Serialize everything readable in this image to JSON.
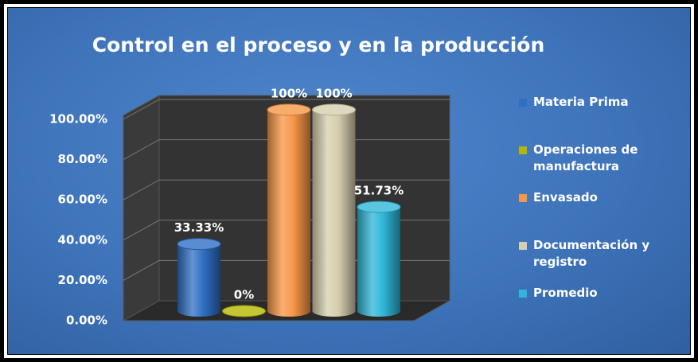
{
  "chart_data": {
    "type": "bar",
    "title": "Control en el proceso y en la producción",
    "categories": [
      null
    ],
    "series": [
      {
        "name": "Materia Prima",
        "color": "#2f6fc4",
        "values": [
          33.33
        ],
        "value_labels": [
          "33.33%"
        ]
      },
      {
        "name": "Operaciones de manufactura",
        "color": "#b5b800",
        "values": [
          0
        ],
        "value_labels": [
          "0%"
        ]
      },
      {
        "name": "Envasado",
        "color": "#f79646",
        "values": [
          100
        ],
        "value_labels": [
          "100%"
        ]
      },
      {
        "name": "Documentación y registro",
        "color": "#d6cfae",
        "values": [
          100
        ],
        "value_labels": [
          "100%"
        ]
      },
      {
        "name": "Promedio",
        "color": "#2fb6d8",
        "values": [
          51.73
        ],
        "value_labels": [
          "51.73%"
        ]
      }
    ],
    "ylim": [
      0,
      100
    ],
    "yticks": [
      {
        "value": 0,
        "label": "0.00%"
      },
      {
        "value": 20,
        "label": "20.00%"
      },
      {
        "value": 40,
        "label": "40.00%"
      },
      {
        "value": 60,
        "label": "60.00%"
      },
      {
        "value": 80,
        "label": "80.00%"
      },
      {
        "value": 100,
        "label": "100.00%"
      }
    ],
    "grid": true,
    "legend": "right"
  }
}
